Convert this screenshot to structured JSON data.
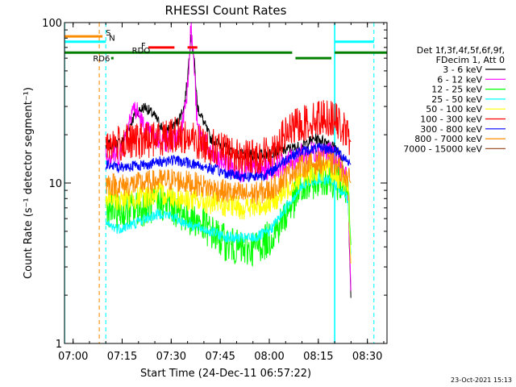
{
  "chart_data": {
    "type": "line",
    "title": "RHESSI Count Rates",
    "xlabel": "Start Time (24-Dec-11 06:57:22)",
    "ylabel": "Count Rate (s⁻¹ detector segment⁻¹)",
    "y_scale": "log",
    "ylim": [
      1,
      100
    ],
    "xlim": [
      "06:57:22",
      "08:36:00"
    ],
    "x_ticks": [
      "07:00",
      "07:15",
      "07:30",
      "07:45",
      "08:00",
      "08:15",
      "08:30"
    ],
    "y_ticks": [
      "1",
      "10",
      "100"
    ],
    "legend_header": [
      "Det 1f,3f,4f,5f,6f,9f,",
      "FDecim 1, Att 0"
    ],
    "legend_position": "right",
    "footer_date": "23-Oct-2021 15:13",
    "series": [
      {
        "name": "3 - 6 keV",
        "color": "#000000",
        "points": [
          [
            "07:10",
            17
          ],
          [
            "07:15",
            18
          ],
          [
            "07:17",
            22
          ],
          [
            "07:19",
            27
          ],
          [
            "07:22",
            30
          ],
          [
            "07:25",
            26
          ],
          [
            "07:28",
            21
          ],
          [
            "07:32",
            24
          ],
          [
            "07:34",
            30
          ],
          [
            "07:35",
            45
          ],
          [
            "07:36",
            85
          ],
          [
            "07:37",
            60
          ],
          [
            "07:38",
            30
          ],
          [
            "07:42",
            19
          ],
          [
            "07:50",
            15
          ],
          [
            "07:58",
            15
          ],
          [
            "08:04",
            16
          ],
          [
            "08:10",
            17
          ],
          [
            "08:14",
            19
          ],
          [
            "08:18",
            18
          ],
          [
            "08:21",
            16
          ],
          [
            "08:24",
            10
          ],
          [
            "08:25",
            1.8
          ]
        ]
      },
      {
        "name": "6 - 12 keV",
        "color": "#ff00ff",
        "points": [
          [
            "07:10",
            15
          ],
          [
            "07:14",
            15
          ],
          [
            "07:16",
            19
          ],
          [
            "07:18",
            30
          ],
          [
            "07:20",
            27
          ],
          [
            "07:22",
            21
          ],
          [
            "07:26",
            19
          ],
          [
            "07:30",
            18
          ],
          [
            "07:33",
            20
          ],
          [
            "07:35",
            40
          ],
          [
            "07:36",
            95
          ],
          [
            "07:37",
            55
          ],
          [
            "07:38",
            22
          ],
          [
            "07:42",
            15
          ],
          [
            "07:50",
            12
          ],
          [
            "07:58",
            12
          ],
          [
            "08:04",
            13
          ],
          [
            "08:10",
            15
          ],
          [
            "08:15",
            16
          ],
          [
            "08:20",
            15
          ],
          [
            "08:24",
            10
          ],
          [
            "08:25",
            2
          ]
        ]
      },
      {
        "name": "12 - 25 keV",
        "color": "#00ff00",
        "points": [
          [
            "07:10",
            7
          ],
          [
            "07:14",
            6.5
          ],
          [
            "07:18",
            6.8
          ],
          [
            "07:22",
            7
          ],
          [
            "07:27",
            7.5
          ],
          [
            "07:30",
            7.2
          ],
          [
            "07:33",
            6.5
          ],
          [
            "07:37",
            6
          ],
          [
            "07:42",
            5
          ],
          [
            "07:47",
            4.2
          ],
          [
            "07:52",
            3.8
          ],
          [
            "07:56",
            4
          ],
          [
            "08:00",
            4.5
          ],
          [
            "08:04",
            5.8
          ],
          [
            "08:07",
            7.5
          ],
          [
            "08:10",
            9
          ],
          [
            "08:14",
            10.5
          ],
          [
            "08:18",
            11
          ],
          [
            "08:21",
            10
          ],
          [
            "08:24",
            9
          ],
          [
            "08:25",
            4
          ]
        ]
      },
      {
        "name": "25 - 50 keV",
        "color": "#00ffff",
        "points": [
          [
            "07:10",
            5.5
          ],
          [
            "07:14",
            5.2
          ],
          [
            "07:18",
            5.5
          ],
          [
            "07:22",
            6
          ],
          [
            "07:27",
            6.5
          ],
          [
            "07:30",
            6.2
          ],
          [
            "07:33",
            5.8
          ],
          [
            "07:37",
            5.4
          ],
          [
            "07:42",
            5
          ],
          [
            "07:47",
            4.6
          ],
          [
            "07:52",
            4.5
          ],
          [
            "07:56",
            4.6
          ],
          [
            "08:00",
            5
          ],
          [
            "08:04",
            6.5
          ],
          [
            "08:07",
            8
          ],
          [
            "08:10",
            9.5
          ],
          [
            "08:14",
            10.5
          ],
          [
            "08:18",
            10.5
          ],
          [
            "08:21",
            9.5
          ],
          [
            "08:24",
            8
          ],
          [
            "08:25",
            3.5
          ]
        ]
      },
      {
        "name": "50 - 100 keV",
        "color": "#ffff00",
        "points": [
          [
            "07:10",
            8
          ],
          [
            "07:14",
            7.8
          ],
          [
            "07:18",
            8
          ],
          [
            "07:22",
            8.2
          ],
          [
            "07:27",
            8.6
          ],
          [
            "07:30",
            8.4
          ],
          [
            "07:33",
            8
          ],
          [
            "07:37",
            7.8
          ],
          [
            "07:42",
            7.5
          ],
          [
            "07:47",
            7.2
          ],
          [
            "07:52",
            7
          ],
          [
            "07:56",
            7.1
          ],
          [
            "08:00",
            7.5
          ],
          [
            "08:04",
            8.5
          ],
          [
            "08:07",
            10
          ],
          [
            "08:10",
            11
          ],
          [
            "08:14",
            12
          ],
          [
            "08:18",
            12
          ],
          [
            "08:21",
            11
          ],
          [
            "08:24",
            10
          ],
          [
            "08:25",
            3
          ]
        ]
      },
      {
        "name": "100 - 300 keV",
        "color": "#ff0000",
        "points": [
          [
            "07:10",
            18
          ],
          [
            "07:14",
            17.5
          ],
          [
            "07:18",
            18
          ],
          [
            "07:22",
            18.5
          ],
          [
            "07:26",
            19
          ],
          [
            "07:30",
            20
          ],
          [
            "07:34",
            19.5
          ],
          [
            "07:38",
            18
          ],
          [
            "07:42",
            17
          ],
          [
            "07:47",
            15.5
          ],
          [
            "07:52",
            14.5
          ],
          [
            "07:56",
            14.5
          ],
          [
            "08:00",
            15.5
          ],
          [
            "08:03",
            18
          ],
          [
            "08:06",
            21
          ],
          [
            "08:09",
            23
          ],
          [
            "08:12",
            24
          ],
          [
            "08:16",
            26
          ],
          [
            "08:20",
            25
          ],
          [
            "08:23",
            21
          ],
          [
            "08:25",
            18
          ]
        ]
      },
      {
        "name": "300 - 800 keV",
        "color": "#0000ff",
        "points": [
          [
            "07:10",
            13
          ],
          [
            "07:14",
            12.5
          ],
          [
            "07:18",
            12.8
          ],
          [
            "07:22",
            13
          ],
          [
            "07:26",
            13.5
          ],
          [
            "07:30",
            14
          ],
          [
            "07:34",
            13.5
          ],
          [
            "07:38",
            13
          ],
          [
            "07:42",
            12.3
          ],
          [
            "07:47",
            11.5
          ],
          [
            "07:52",
            11
          ],
          [
            "07:56",
            11
          ],
          [
            "08:00",
            11.5
          ],
          [
            "08:03",
            13
          ],
          [
            "08:06",
            14.5
          ],
          [
            "08:09",
            15.5
          ],
          [
            "08:12",
            16
          ],
          [
            "08:16",
            16.5
          ],
          [
            "08:20",
            16
          ],
          [
            "08:23",
            14.5
          ],
          [
            "08:25",
            13
          ]
        ]
      },
      {
        "name": "800 - 7000 keV",
        "color": "#ff8c00",
        "points": [
          [
            "07:10",
            10
          ],
          [
            "07:14",
            9.6
          ],
          [
            "07:18",
            9.8
          ],
          [
            "07:22",
            10
          ],
          [
            "07:26",
            10.3
          ],
          [
            "07:30",
            10.5
          ],
          [
            "07:34",
            10.2
          ],
          [
            "07:38",
            9.8
          ],
          [
            "07:42",
            9.3
          ],
          [
            "07:47",
            8.8
          ],
          [
            "07:52",
            8.5
          ],
          [
            "07:56",
            8.6
          ],
          [
            "08:00",
            9
          ],
          [
            "08:03",
            10
          ],
          [
            "08:06",
            11.5
          ],
          [
            "08:09",
            12.5
          ],
          [
            "08:12",
            13
          ],
          [
            "08:16",
            13.5
          ],
          [
            "08:20",
            13
          ],
          [
            "08:23",
            11.5
          ],
          [
            "08:25",
            10
          ]
        ]
      },
      {
        "name": "7000 - 15000 keV",
        "color": "#a0522d",
        "points": []
      }
    ],
    "annotations": [
      {
        "label": "S",
        "color": "#ff8c00",
        "kind": "segment",
        "start": "06:57:22",
        "end": "07:09",
        "y": 82
      },
      {
        "label": "N",
        "color": "#00ffff",
        "kind": "segment",
        "start": "06:57:22",
        "end": "07:10",
        "y": 76
      },
      {
        "label": "",
        "color": "#00ffff",
        "kind": "segment",
        "start": "08:20",
        "end": "08:32",
        "y": 76
      },
      {
        "label": "F",
        "color": "#ff0000",
        "kind": "segment",
        "start": "07:23",
        "end": "07:31",
        "y": 70
      },
      {
        "label": "",
        "color": "#ff0000",
        "kind": "segment",
        "start": "07:35",
        "end": "07:38",
        "y": 70
      },
      {
        "label": "RDO",
        "color": "#008000",
        "kind": "segment",
        "start": "06:57:22",
        "end": "08:07",
        "y": 65
      },
      {
        "label": "",
        "color": "#008000",
        "kind": "segment",
        "start": "08:08",
        "end": "08:19",
        "y": 60
      },
      {
        "label": "",
        "color": "#008000",
        "kind": "segment",
        "start": "08:20",
        "end": "08:36",
        "y": 65
      },
      {
        "label": "RD6",
        "color": "#008000",
        "kind": "point",
        "start": "07:12",
        "y": 60
      }
    ],
    "vertical_lines": [
      {
        "time": "06:57:22",
        "color": "#00ffff",
        "style": "solid"
      },
      {
        "time": "07:08",
        "color": "#ff8c00",
        "style": "dashed"
      },
      {
        "time": "07:10",
        "color": "#00ffff",
        "style": "dashed"
      },
      {
        "time": "08:20",
        "color": "#00ffff",
        "style": "solid"
      },
      {
        "time": "08:32",
        "color": "#00ffff",
        "style": "dashed"
      }
    ]
  }
}
